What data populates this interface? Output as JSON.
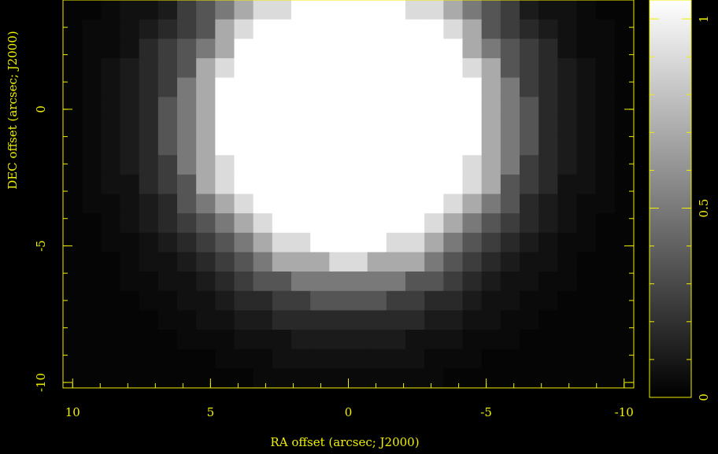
{
  "chart_data": {
    "type": "heatmap",
    "xlabel": "RA offset (arcsec; J2000)",
    "ylabel": "DEC offset (arcsec; J2000)",
    "xlim": [
      10.35,
      -10.35
    ],
    "ylim": [
      -10.2,
      4.0
    ],
    "xticks": [
      10,
      5,
      0,
      -5,
      -10
    ],
    "yticks": [
      -10,
      -5,
      0
    ],
    "xminor_ticks": [
      10,
      9,
      8,
      7,
      6,
      5,
      4,
      3,
      2,
      1,
      0,
      -1,
      -2,
      -3,
      -4,
      -5,
      -6,
      -7,
      -8,
      -9,
      -10
    ],
    "yminor_ticks": [
      -10,
      -9,
      -8,
      -7,
      -6,
      -5,
      -4,
      -3,
      -2,
      -1,
      0,
      1,
      2,
      3
    ],
    "zlim": [
      0,
      1.05
    ],
    "cticks": [
      0,
      0.5,
      1
    ],
    "cminor_ticks": [
      0,
      0.1,
      0.2,
      0.3,
      0.4,
      0.5,
      0.6,
      0.7,
      0.8,
      0.9,
      1
    ],
    "axis_color": "#f0f000",
    "z": [
      [
        0.02,
        0.02,
        0.04,
        0.07,
        0.07,
        0.11,
        0.25,
        0.35,
        0.5,
        0.7,
        0.9,
        0.9,
        1.5,
        1.5,
        1.5,
        1.5,
        1.5,
        1.5,
        0.9,
        0.9,
        0.7,
        0.5,
        0.35,
        0.25,
        0.11,
        0.07,
        0.07,
        0.04,
        0.02,
        0.02
      ],
      [
        0.02,
        0.04,
        0.04,
        0.07,
        0.11,
        0.17,
        0.25,
        0.35,
        0.7,
        0.9,
        1.5,
        1.5,
        1.5,
        1.5,
        1.5,
        1.5,
        1.5,
        1.5,
        1.5,
        1.5,
        0.9,
        0.7,
        0.35,
        0.25,
        0.17,
        0.11,
        0.07,
        0.04,
        0.04,
        0.02
      ],
      [
        0.02,
        0.04,
        0.04,
        0.07,
        0.17,
        0.25,
        0.35,
        0.5,
        0.7,
        1.5,
        1.5,
        1.5,
        1.5,
        1.5,
        1.5,
        1.5,
        1.5,
        1.5,
        1.5,
        1.5,
        1.5,
        0.7,
        0.5,
        0.35,
        0.25,
        0.17,
        0.07,
        0.04,
        0.04,
        0.02
      ],
      [
        0.02,
        0.04,
        0.07,
        0.11,
        0.17,
        0.25,
        0.35,
        0.7,
        0.9,
        1.5,
        1.5,
        1.5,
        1.5,
        1.5,
        1.5,
        1.5,
        1.5,
        1.5,
        1.5,
        1.5,
        1.5,
        0.9,
        0.7,
        0.35,
        0.25,
        0.17,
        0.11,
        0.07,
        0.04,
        0.02
      ],
      [
        0.02,
        0.04,
        0.07,
        0.11,
        0.17,
        0.25,
        0.5,
        0.7,
        1.5,
        1.5,
        1.5,
        1.5,
        1.5,
        1.5,
        1.5,
        1.5,
        1.5,
        1.5,
        1.5,
        1.5,
        1.5,
        1.5,
        0.7,
        0.5,
        0.25,
        0.17,
        0.11,
        0.07,
        0.04,
        0.02
      ],
      [
        0.02,
        0.04,
        0.07,
        0.11,
        0.17,
        0.35,
        0.5,
        0.7,
        1.5,
        1.5,
        1.5,
        1.5,
        1.5,
        1.5,
        1.5,
        1.5,
        1.5,
        1.5,
        1.5,
        1.5,
        1.5,
        1.5,
        0.7,
        0.5,
        0.35,
        0.17,
        0.11,
        0.07,
        0.04,
        0.02
      ],
      [
        0.02,
        0.04,
        0.07,
        0.11,
        0.17,
        0.35,
        0.5,
        0.7,
        1.5,
        1.5,
        1.5,
        1.5,
        1.5,
        1.5,
        1.5,
        1.5,
        1.5,
        1.5,
        1.5,
        1.5,
        1.5,
        1.5,
        0.7,
        0.5,
        0.35,
        0.17,
        0.11,
        0.07,
        0.04,
        0.02
      ],
      [
        0.02,
        0.04,
        0.07,
        0.11,
        0.17,
        0.35,
        0.5,
        0.7,
        1.5,
        1.5,
        1.5,
        1.5,
        1.5,
        1.5,
        1.5,
        1.5,
        1.5,
        1.5,
        1.5,
        1.5,
        1.5,
        1.5,
        0.7,
        0.5,
        0.35,
        0.17,
        0.11,
        0.07,
        0.04,
        0.02
      ],
      [
        0.02,
        0.04,
        0.07,
        0.11,
        0.17,
        0.25,
        0.5,
        0.7,
        0.9,
        1.5,
        1.5,
        1.5,
        1.5,
        1.5,
        1.5,
        1.5,
        1.5,
        1.5,
        1.5,
        1.5,
        1.5,
        0.9,
        0.7,
        0.5,
        0.25,
        0.17,
        0.11,
        0.07,
        0.04,
        0.02
      ],
      [
        0.02,
        0.04,
        0.07,
        0.07,
        0.17,
        0.25,
        0.35,
        0.7,
        0.9,
        1.5,
        1.5,
        1.5,
        1.5,
        1.5,
        1.5,
        1.5,
        1.5,
        1.5,
        1.5,
        1.5,
        1.5,
        0.9,
        0.7,
        0.35,
        0.25,
        0.17,
        0.07,
        0.07,
        0.04,
        0.02
      ],
      [
        0.02,
        0.04,
        0.04,
        0.07,
        0.11,
        0.17,
        0.35,
        0.5,
        0.7,
        0.9,
        1.5,
        1.5,
        1.5,
        1.5,
        1.5,
        1.5,
        1.5,
        1.5,
        1.5,
        1.5,
        0.9,
        0.7,
        0.5,
        0.35,
        0.17,
        0.11,
        0.07,
        0.04,
        0.04,
        0.02
      ],
      [
        0.02,
        0.02,
        0.04,
        0.07,
        0.11,
        0.17,
        0.25,
        0.35,
        0.5,
        0.7,
        0.9,
        1.5,
        1.5,
        1.5,
        1.5,
        1.5,
        1.5,
        1.5,
        1.5,
        0.9,
        0.7,
        0.5,
        0.35,
        0.25,
        0.17,
        0.11,
        0.07,
        0.04,
        0.02,
        0.02
      ],
      [
        0.02,
        0.02,
        0.04,
        0.04,
        0.07,
        0.11,
        0.17,
        0.25,
        0.35,
        0.5,
        0.7,
        0.9,
        0.9,
        1.5,
        1.5,
        1.5,
        1.5,
        0.9,
        0.9,
        0.7,
        0.5,
        0.35,
        0.25,
        0.17,
        0.11,
        0.07,
        0.04,
        0.04,
        0.02,
        0.02
      ],
      [
        0.02,
        0.02,
        0.02,
        0.04,
        0.07,
        0.07,
        0.11,
        0.17,
        0.25,
        0.35,
        0.5,
        0.7,
        0.7,
        0.7,
        0.9,
        0.9,
        0.7,
        0.7,
        0.7,
        0.5,
        0.35,
        0.25,
        0.17,
        0.11,
        0.07,
        0.07,
        0.04,
        0.02,
        0.02,
        0.02
      ],
      [
        0.02,
        0.02,
        0.02,
        0.04,
        0.04,
        0.07,
        0.07,
        0.11,
        0.17,
        0.25,
        0.35,
        0.35,
        0.5,
        0.5,
        0.5,
        0.5,
        0.5,
        0.5,
        0.35,
        0.35,
        0.25,
        0.17,
        0.11,
        0.07,
        0.07,
        0.04,
        0.04,
        0.02,
        0.02,
        0.02
      ],
      [
        0.02,
        0.02,
        0.02,
        0.02,
        0.04,
        0.04,
        0.07,
        0.07,
        0.11,
        0.17,
        0.17,
        0.25,
        0.25,
        0.35,
        0.35,
        0.35,
        0.35,
        0.25,
        0.25,
        0.17,
        0.17,
        0.11,
        0.07,
        0.07,
        0.04,
        0.04,
        0.02,
        0.02,
        0.02,
        0.02
      ],
      [
        0.02,
        0.02,
        0.02,
        0.02,
        0.02,
        0.04,
        0.04,
        0.07,
        0.07,
        0.11,
        0.11,
        0.17,
        0.17,
        0.17,
        0.17,
        0.17,
        0.17,
        0.17,
        0.17,
        0.11,
        0.11,
        0.07,
        0.07,
        0.04,
        0.04,
        0.02,
        0.02,
        0.02,
        0.02,
        0.02
      ],
      [
        0.02,
        0.02,
        0.02,
        0.02,
        0.02,
        0.02,
        0.04,
        0.04,
        0.04,
        0.07,
        0.07,
        0.07,
        0.11,
        0.11,
        0.11,
        0.11,
        0.11,
        0.11,
        0.07,
        0.07,
        0.07,
        0.04,
        0.04,
        0.04,
        0.02,
        0.02,
        0.02,
        0.02,
        0.02,
        0.02
      ],
      [
        0.02,
        0.02,
        0.02,
        0.02,
        0.02,
        0.02,
        0.02,
        0.02,
        0.04,
        0.04,
        0.04,
        0.07,
        0.07,
        0.07,
        0.07,
        0.07,
        0.07,
        0.07,
        0.07,
        0.04,
        0.04,
        0.04,
        0.02,
        0.02,
        0.02,
        0.02,
        0.02,
        0.02,
        0.02,
        0.02
      ],
      [
        0.02,
        0.02,
        0.02,
        0.02,
        0.02,
        0.02,
        0.02,
        0.02,
        0.02,
        0.02,
        0.04,
        0.04,
        0.04,
        0.04,
        0.04,
        0.04,
        0.04,
        0.04,
        0.04,
        0.04,
        0.02,
        0.02,
        0.02,
        0.02,
        0.02,
        0.02,
        0.02,
        0.02,
        0.02,
        0.02
      ]
    ]
  }
}
